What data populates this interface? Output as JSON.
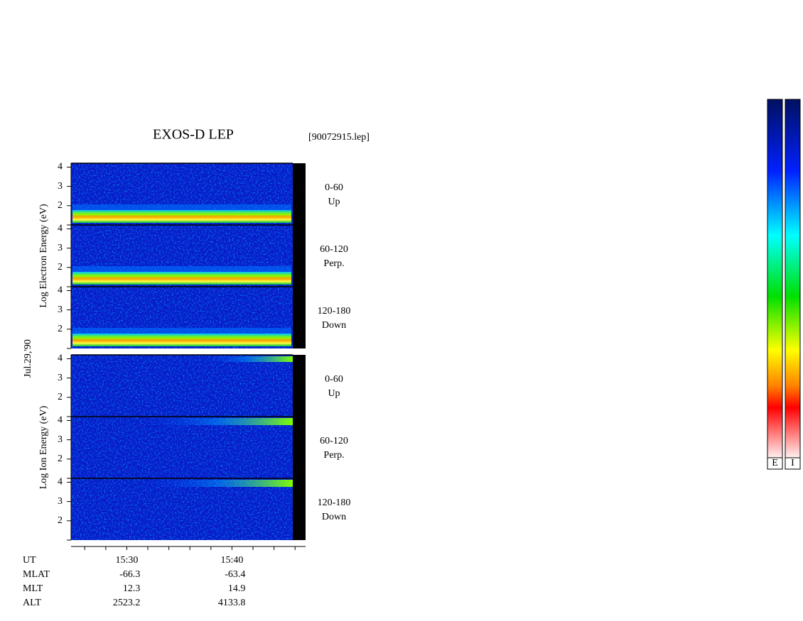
{
  "chart_data": {
    "type": "spectrogram",
    "title": "EXOS-D LEP",
    "file": "[90072915.lep]",
    "date": "Jul.29,'90",
    "ylim": [
      1,
      4.2
    ],
    "yticks": [
      2,
      3,
      4
    ],
    "xlim": [
      924.7,
      947.0
    ],
    "xlabel": "UT",
    "xticks": [
      {
        "value": 930,
        "label": "15:30"
      },
      {
        "value": 940,
        "label": "15:40"
      }
    ],
    "xminorticks": [
      926,
      928,
      932,
      934,
      936,
      938,
      942,
      944,
      946
    ],
    "blocks": [
      {
        "ylabel": "Log  Electron  Energy (eV)",
        "panels": [
          {
            "angle": "0-60",
            "dir": "Up"
          },
          {
            "angle": "60-120",
            "dir": "Perp."
          },
          {
            "angle": "120-180",
            "dir": "Down"
          }
        ]
      },
      {
        "ylabel": "Log  Ion  Energy (eV)",
        "panels": [
          {
            "angle": "0-60",
            "dir": "Up"
          },
          {
            "angle": "60-120",
            "dir": "Perp."
          },
          {
            "angle": "120-180",
            "dir": "Down"
          }
        ]
      }
    ],
    "table": [
      {
        "name": "MLAT",
        "values": [
          "-66.3",
          "-63.4"
        ]
      },
      {
        "name": "MLT",
        "values": [
          "12.3",
          "14.9"
        ]
      },
      {
        "name": "ALT",
        "values": [
          "2523.2",
          "4133.8"
        ]
      }
    ],
    "colorbars": [
      "E",
      "I"
    ]
  }
}
